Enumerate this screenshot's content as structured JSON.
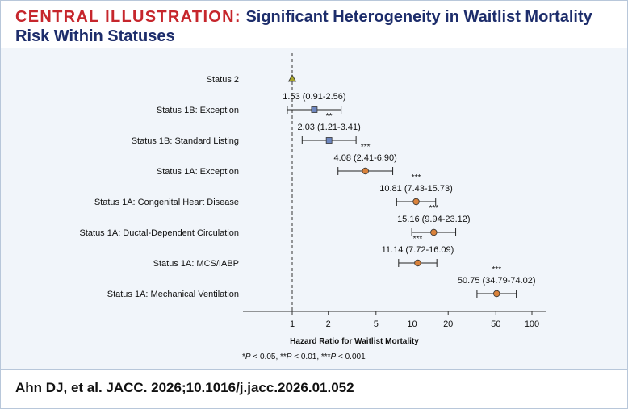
{
  "header": {
    "title_lead": "CENTRAL ILLUSTRATION:",
    "title_rest": "Significant Heterogeneity in Waitlist Mortality Risk Within Statuses"
  },
  "colors": {
    "title_accent": "#c6262c",
    "title_main": "#1d2d6b",
    "reference_marker": "#a8a52a",
    "status_1b_marker": "#6d86be",
    "status_1a_marker": "#d9823b",
    "plot_background": "#f1f5fa"
  },
  "chart_data": {
    "type": "forest",
    "xlabel": "Hazard Ratio for Waitlist Mortality",
    "x_scale": "log",
    "xlim": [
      0.68,
      130
    ],
    "x_ticks": [
      1,
      2,
      5,
      10,
      20,
      50,
      100
    ],
    "reference_line": 1,
    "rows": [
      {
        "label": "Status 2",
        "hr": 1,
        "ci": null,
        "text": "",
        "sig": "",
        "marker": "triangle",
        "group": "reference"
      },
      {
        "label": "Status 1B: Exception",
        "hr": 1.53,
        "ci": [
          0.91,
          2.56
        ],
        "text": "1.53 (0.91-2.56)",
        "sig": "",
        "marker": "square",
        "group": "1B"
      },
      {
        "label": "Status 1B: Standard Listing",
        "hr": 2.03,
        "ci": [
          1.21,
          3.41
        ],
        "text": "2.03 (1.21-3.41)",
        "sig": "**",
        "marker": "square",
        "group": "1B"
      },
      {
        "label": "Status 1A: Exception",
        "hr": 4.08,
        "ci": [
          2.41,
          6.9
        ],
        "text": "4.08 (2.41-6.90)",
        "sig": "***",
        "marker": "circle",
        "group": "1A"
      },
      {
        "label": "Status 1A: Congenital Heart Disease",
        "hr": 10.81,
        "ci": [
          7.43,
          15.73
        ],
        "text": "10.81 (7.43-15.73)",
        "sig": "***",
        "marker": "circle",
        "group": "1A"
      },
      {
        "label": "Status 1A: Ductal-Dependent Circulation",
        "hr": 15.16,
        "ci": [
          9.94,
          23.12
        ],
        "text": "15.16 (9.94-23.12)",
        "sig": "***",
        "marker": "circle",
        "group": "1A"
      },
      {
        "label": "Status 1A: MCS/IABP",
        "hr": 11.14,
        "ci": [
          7.72,
          16.09
        ],
        "text": "11.14 (7.72-16.09)",
        "sig": "***",
        "marker": "circle",
        "group": "1A"
      },
      {
        "label": "Status 1A: Mechanical Ventilation",
        "hr": 50.75,
        "ci": [
          34.79,
          74.02
        ],
        "text": "50.75 (34.79-74.02)",
        "sig": "***",
        "marker": "circle",
        "group": "1A"
      }
    ],
    "footnote": {
      "p1": "P",
      "t1": " < 0.05, **",
      "p2": "P",
      "t2": " < 0.01, ***",
      "p3": "P",
      "t3": " < 0.001",
      "lead": "*"
    }
  },
  "citation": "Ahn DJ, et al. JACC. 2026;10.1016/j.jacc.2026.01.052"
}
